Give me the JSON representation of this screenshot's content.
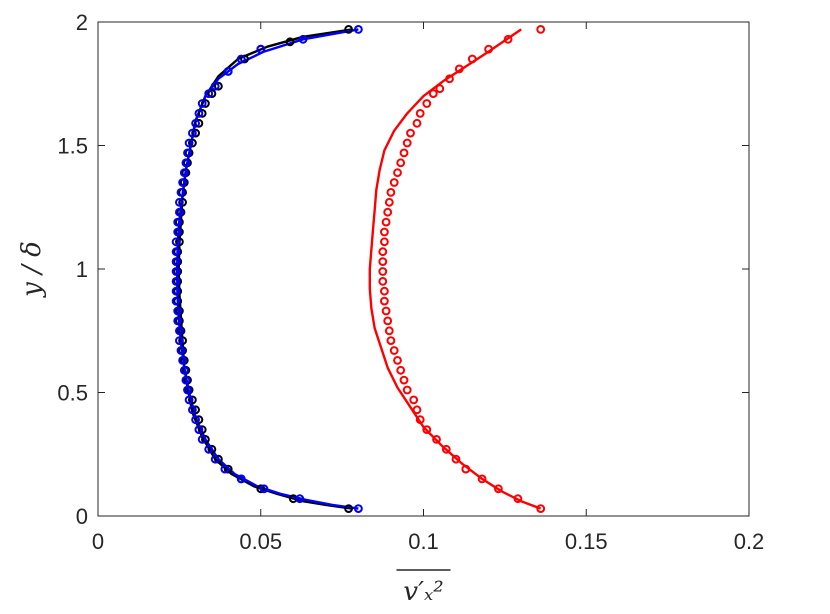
{
  "chart_data": {
    "type": "scatter",
    "xlabel": "v′ₓ²",
    "xlabel_overline": true,
    "ylabel": "y / δ",
    "xlim": [
      0,
      0.2
    ],
    "ylim": [
      0,
      2
    ],
    "x_ticks": [
      0,
      0.05,
      0.1,
      0.15,
      0.2
    ],
    "x_tick_labels": [
      "0",
      "0.05",
      "0.1",
      "0.15",
      "0.2"
    ],
    "y_ticks": [
      0,
      0.5,
      1,
      1.5,
      2
    ],
    "y_tick_labels": [
      "0",
      "0.5",
      "1",
      "1.5",
      "2"
    ],
    "grid": false,
    "box": true,
    "series": [
      {
        "kind": "line",
        "color": "#000000",
        "points": [
          [
            0.078,
            0.03
          ],
          [
            0.07,
            0.045
          ],
          [
            0.063,
            0.06
          ],
          [
            0.055,
            0.09
          ],
          [
            0.048,
            0.12
          ],
          [
            0.041,
            0.17
          ],
          [
            0.036,
            0.23
          ],
          [
            0.032,
            0.32
          ],
          [
            0.029,
            0.42
          ],
          [
            0.0275,
            0.52
          ],
          [
            0.0265,
            0.6
          ],
          [
            0.026,
            0.7
          ],
          [
            0.0255,
            0.8
          ],
          [
            0.025,
            0.9
          ],
          [
            0.0248,
            1.0
          ],
          [
            0.025,
            1.1
          ],
          [
            0.0255,
            1.2
          ],
          [
            0.026,
            1.3
          ],
          [
            0.027,
            1.4
          ],
          [
            0.0285,
            1.5
          ],
          [
            0.03,
            1.6
          ],
          [
            0.033,
            1.7
          ],
          [
            0.037,
            1.78
          ],
          [
            0.043,
            1.85
          ],
          [
            0.052,
            1.9
          ],
          [
            0.063,
            1.94
          ],
          [
            0.078,
            1.97
          ]
        ]
      },
      {
        "kind": "line",
        "color": "#0000ff",
        "points": [
          [
            0.08,
            0.03
          ],
          [
            0.072,
            0.045
          ],
          [
            0.064,
            0.065
          ],
          [
            0.056,
            0.09
          ],
          [
            0.049,
            0.12
          ],
          [
            0.042,
            0.17
          ],
          [
            0.037,
            0.23
          ],
          [
            0.033,
            0.31
          ],
          [
            0.03,
            0.4
          ],
          [
            0.028,
            0.5
          ],
          [
            0.0265,
            0.6
          ],
          [
            0.0255,
            0.7
          ],
          [
            0.0248,
            0.8
          ],
          [
            0.0244,
            0.9
          ],
          [
            0.0243,
            1.0
          ],
          [
            0.0245,
            1.1
          ],
          [
            0.025,
            1.2
          ],
          [
            0.026,
            1.3
          ],
          [
            0.027,
            1.4
          ],
          [
            0.0285,
            1.5
          ],
          [
            0.03,
            1.6
          ],
          [
            0.033,
            1.7
          ],
          [
            0.037,
            1.77
          ],
          [
            0.043,
            1.83
          ],
          [
            0.051,
            1.88
          ],
          [
            0.063,
            1.93
          ],
          [
            0.08,
            1.97
          ]
        ]
      },
      {
        "kind": "line",
        "color": "#ff0000",
        "points": [
          [
            0.136,
            0.03
          ],
          [
            0.13,
            0.06
          ],
          [
            0.124,
            0.1
          ],
          [
            0.118,
            0.15
          ],
          [
            0.112,
            0.21
          ],
          [
            0.106,
            0.28
          ],
          [
            0.1,
            0.36
          ],
          [
            0.096,
            0.44
          ],
          [
            0.092,
            0.52
          ],
          [
            0.089,
            0.6
          ],
          [
            0.087,
            0.68
          ],
          [
            0.085,
            0.76
          ],
          [
            0.084,
            0.84
          ],
          [
            0.0835,
            0.92
          ],
          [
            0.0835,
            1.0
          ],
          [
            0.084,
            1.08
          ],
          [
            0.0845,
            1.16
          ],
          [
            0.085,
            1.24
          ],
          [
            0.0855,
            1.32
          ],
          [
            0.0865,
            1.4
          ],
          [
            0.088,
            1.48
          ],
          [
            0.091,
            1.56
          ],
          [
            0.095,
            1.63
          ],
          [
            0.1,
            1.7
          ],
          [
            0.106,
            1.76
          ],
          [
            0.113,
            1.82
          ],
          [
            0.12,
            1.88
          ],
          [
            0.13,
            1.97
          ]
        ]
      },
      {
        "kind": "markers",
        "marker": "circle",
        "color": "#000000",
        "points": [
          [
            0.077,
            0.03
          ],
          [
            0.06,
            0.07
          ],
          [
            0.05,
            0.11
          ],
          [
            0.044,
            0.15
          ],
          [
            0.04,
            0.19
          ],
          [
            0.037,
            0.23
          ],
          [
            0.035,
            0.27
          ],
          [
            0.033,
            0.31
          ],
          [
            0.032,
            0.35
          ],
          [
            0.031,
            0.39
          ],
          [
            0.03,
            0.43
          ],
          [
            0.029,
            0.47
          ],
          [
            0.028,
            0.51
          ],
          [
            0.0275,
            0.55
          ],
          [
            0.027,
            0.59
          ],
          [
            0.0265,
            0.63
          ],
          [
            0.026,
            0.67
          ],
          [
            0.026,
            0.71
          ],
          [
            0.0255,
            0.75
          ],
          [
            0.025,
            0.79
          ],
          [
            0.025,
            0.83
          ],
          [
            0.0245,
            0.87
          ],
          [
            0.0245,
            0.91
          ],
          [
            0.0245,
            0.95
          ],
          [
            0.0245,
            0.99
          ],
          [
            0.0245,
            1.03
          ],
          [
            0.0245,
            1.07
          ],
          [
            0.025,
            1.11
          ],
          [
            0.025,
            1.15
          ],
          [
            0.025,
            1.19
          ],
          [
            0.0255,
            1.23
          ],
          [
            0.026,
            1.27
          ],
          [
            0.026,
            1.31
          ],
          [
            0.0265,
            1.35
          ],
          [
            0.027,
            1.39
          ],
          [
            0.0275,
            1.43
          ],
          [
            0.028,
            1.47
          ],
          [
            0.029,
            1.51
          ],
          [
            0.03,
            1.55
          ],
          [
            0.031,
            1.59
          ],
          [
            0.032,
            1.63
          ],
          [
            0.033,
            1.67
          ],
          [
            0.035,
            1.71
          ],
          [
            0.037,
            1.74
          ],
          [
            0.04,
            1.8
          ],
          [
            0.045,
            1.85
          ],
          [
            0.05,
            1.89
          ],
          [
            0.059,
            1.92
          ],
          [
            0.077,
            1.97
          ]
        ]
      },
      {
        "kind": "markers",
        "marker": "circle",
        "color": "#0000ff",
        "points": [
          [
            0.08,
            0.03
          ],
          [
            0.062,
            0.07
          ],
          [
            0.051,
            0.11
          ],
          [
            0.044,
            0.15
          ],
          [
            0.039,
            0.19
          ],
          [
            0.036,
            0.23
          ],
          [
            0.034,
            0.27
          ],
          [
            0.032,
            0.31
          ],
          [
            0.031,
            0.35
          ],
          [
            0.03,
            0.39
          ],
          [
            0.029,
            0.43
          ],
          [
            0.028,
            0.47
          ],
          [
            0.0275,
            0.51
          ],
          [
            0.027,
            0.55
          ],
          [
            0.0265,
            0.59
          ],
          [
            0.026,
            0.63
          ],
          [
            0.0255,
            0.67
          ],
          [
            0.025,
            0.71
          ],
          [
            0.025,
            0.75
          ],
          [
            0.0245,
            0.79
          ],
          [
            0.0245,
            0.83
          ],
          [
            0.024,
            0.87
          ],
          [
            0.024,
            0.91
          ],
          [
            0.024,
            0.95
          ],
          [
            0.024,
            0.99
          ],
          [
            0.024,
            1.03
          ],
          [
            0.024,
            1.07
          ],
          [
            0.024,
            1.11
          ],
          [
            0.0245,
            1.15
          ],
          [
            0.0245,
            1.19
          ],
          [
            0.025,
            1.23
          ],
          [
            0.025,
            1.27
          ],
          [
            0.0255,
            1.31
          ],
          [
            0.026,
            1.35
          ],
          [
            0.0265,
            1.39
          ],
          [
            0.027,
            1.43
          ],
          [
            0.0275,
            1.47
          ],
          [
            0.028,
            1.51
          ],
          [
            0.029,
            1.55
          ],
          [
            0.03,
            1.59
          ],
          [
            0.031,
            1.63
          ],
          [
            0.032,
            1.67
          ],
          [
            0.034,
            1.71
          ],
          [
            0.036,
            1.74
          ],
          [
            0.04,
            1.8
          ],
          [
            0.044,
            1.85
          ],
          [
            0.05,
            1.89
          ],
          [
            0.063,
            1.93
          ],
          [
            0.08,
            1.97
          ]
        ]
      },
      {
        "kind": "markers",
        "marker": "circle",
        "color": "#ff0000",
        "points": [
          [
            0.136,
            0.03
          ],
          [
            0.129,
            0.07
          ],
          [
            0.123,
            0.11
          ],
          [
            0.118,
            0.15
          ],
          [
            0.113,
            0.19
          ],
          [
            0.11,
            0.23
          ],
          [
            0.107,
            0.27
          ],
          [
            0.104,
            0.31
          ],
          [
            0.101,
            0.35
          ],
          [
            0.099,
            0.39
          ],
          [
            0.098,
            0.43
          ],
          [
            0.097,
            0.47
          ],
          [
            0.095,
            0.51
          ],
          [
            0.094,
            0.55
          ],
          [
            0.093,
            0.59
          ],
          [
            0.092,
            0.63
          ],
          [
            0.091,
            0.67
          ],
          [
            0.09,
            0.71
          ],
          [
            0.0895,
            0.75
          ],
          [
            0.089,
            0.79
          ],
          [
            0.0885,
            0.83
          ],
          [
            0.088,
            0.87
          ],
          [
            0.088,
            0.91
          ],
          [
            0.0875,
            0.95
          ],
          [
            0.0875,
            0.99
          ],
          [
            0.0875,
            1.03
          ],
          [
            0.0875,
            1.07
          ],
          [
            0.088,
            1.11
          ],
          [
            0.088,
            1.15
          ],
          [
            0.0885,
            1.19
          ],
          [
            0.089,
            1.23
          ],
          [
            0.0895,
            1.27
          ],
          [
            0.09,
            1.31
          ],
          [
            0.091,
            1.35
          ],
          [
            0.092,
            1.39
          ],
          [
            0.093,
            1.43
          ],
          [
            0.094,
            1.47
          ],
          [
            0.095,
            1.51
          ],
          [
            0.096,
            1.55
          ],
          [
            0.098,
            1.59
          ],
          [
            0.099,
            1.63
          ],
          [
            0.101,
            1.67
          ],
          [
            0.103,
            1.71
          ],
          [
            0.105,
            1.73
          ],
          [
            0.108,
            1.77
          ],
          [
            0.111,
            1.81
          ],
          [
            0.115,
            1.85
          ],
          [
            0.12,
            1.89
          ],
          [
            0.126,
            1.93
          ],
          [
            0.136,
            1.97
          ]
        ]
      }
    ]
  }
}
